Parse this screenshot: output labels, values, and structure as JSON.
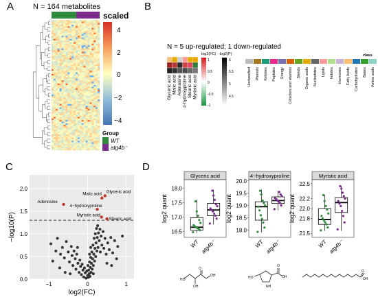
{
  "panels": {
    "A": {
      "letter": "A",
      "title": "N = 164 metabolites",
      "scale_title": "scaled",
      "scale_ticks": [
        "4",
        "2",
        "0",
        "−2",
        "−4"
      ],
      "group_title": "Group",
      "groups": [
        "WT",
        "atg4b⁻"
      ],
      "colors": {
        "wt": "#2e8b3e",
        "atg4b": "#7b2d8e",
        "high": "#d73027",
        "mid": "#ffffbf",
        "low": "#4575b4"
      }
    },
    "B": {
      "letter": "B",
      "title": "N = 5 up-regulated; 1 down-regulated",
      "metabolites": [
        "Glyceric acid",
        "Malic acid",
        "Adenosine",
        "4-hydroxyproline",
        "Stearic acid",
        "Myristic acid"
      ],
      "log2fc_title": "log2(FC)",
      "log2fc_ticks": [
        "1",
        "0.5",
        "0",
        "-0.5",
        "-1"
      ],
      "p_title": "-log2(P)",
      "p_ticks": [
        "6",
        "5.5",
        "5",
        "4.5"
      ],
      "class_title": "class",
      "classes": [
        "Unclassified",
        "Phenols",
        "Ketones",
        "Peptides",
        "Energy",
        "Cofactors and vitamins",
        "Sterols",
        "Organic acids",
        "Nucleotides",
        "Lipids",
        "Indoles",
        "Hormones",
        "Fatty Acids",
        "Carbohydrates",
        "Bases",
        "Amino acids"
      ],
      "class_colors": [
        "#bdbdbd",
        "#a6761d",
        "#1b9e77",
        "#e7298a",
        "#7570b3",
        "#d95f02",
        "#66a61e",
        "#e6ab02",
        "#666666",
        "#fb9a99",
        "#b2df8a",
        "#cab2d6",
        "#fdbf6f",
        "#1f78b4",
        "#33a02c",
        "#8dd3c7"
      ]
    },
    "C": {
      "letter": "C",
      "labels": [
        "Glyceric acid",
        "Adenosine",
        "Malic acid",
        "4−hydroxyproline",
        "Myristic acid",
        "Stearic acid"
      ]
    },
    "D": {
      "letter": "D",
      "ylabel": "log2 quant",
      "groups": [
        "WT",
        "atg4b⁻"
      ]
    }
  },
  "chart_data": [
    {
      "type": "heatmap",
      "title": "N = 164 metabolites",
      "legend_title": "scaled",
      "ylim": [
        -4,
        4
      ],
      "rows": 164,
      "column_groups": [
        "WT",
        "atg4b⁻"
      ]
    },
    {
      "type": "scatter",
      "xlabel": "log2(FC)",
      "ylabel": "−log10(P)",
      "xlim": [
        -1.5,
        1.2
      ],
      "ylim": [
        0,
        2.3
      ],
      "xticks": [
        "−1",
        "0",
        "1"
      ],
      "yticks": [
        "0.0",
        "0.5",
        "1.0",
        "1.5",
        "2.0"
      ],
      "threshold": 1.3,
      "highlighted": [
        {
          "name": "Glyceric acid",
          "x": 0.45,
          "y": 1.84
        },
        {
          "name": "Adenosine",
          "x": -0.62,
          "y": 1.65
        },
        {
          "name": "Malic acid",
          "x": 0.37,
          "y": 1.79
        },
        {
          "name": "4−hydroxyproline",
          "x": 0.25,
          "y": 1.54
        },
        {
          "name": "Myristic acid",
          "x": 0.36,
          "y": 1.37
        },
        {
          "name": "Stearic acid",
          "x": 0.5,
          "y": 1.33
        }
      ],
      "points": [
        [
          -0.95,
          0.78
        ],
        [
          -0.82,
          0.62
        ],
        [
          -0.78,
          0.9
        ],
        [
          -0.7,
          0.55
        ],
        [
          -0.65,
          0.7
        ],
        [
          -0.6,
          0.47
        ],
        [
          -0.55,
          0.83
        ],
        [
          -0.5,
          0.6
        ],
        [
          -0.47,
          0.38
        ],
        [
          -0.42,
          0.72
        ],
        [
          -0.4,
          0.52
        ],
        [
          -0.38,
          0.3
        ],
        [
          -0.35,
          0.62
        ],
        [
          -0.32,
          0.45
        ],
        [
          -0.3,
          0.22
        ],
        [
          -0.28,
          0.55
        ],
        [
          -0.25,
          0.35
        ],
        [
          -0.22,
          0.15
        ],
        [
          -0.2,
          0.42
        ],
        [
          -0.18,
          0.28
        ],
        [
          -0.16,
          0.1
        ],
        [
          -0.14,
          0.33
        ],
        [
          -0.12,
          0.2
        ],
        [
          -0.1,
          0.05
        ],
        [
          -0.08,
          0.25
        ],
        [
          -0.06,
          0.14
        ],
        [
          -0.04,
          0.02
        ],
        [
          -0.02,
          0.18
        ],
        [
          0.0,
          0.08
        ],
        [
          0.01,
          0.3
        ],
        [
          0.02,
          0.04
        ],
        [
          0.03,
          0.2
        ],
        [
          0.04,
          0.12
        ],
        [
          0.05,
          0.38
        ],
        [
          0.06,
          0.06
        ],
        [
          0.07,
          0.26
        ],
        [
          0.08,
          0.48
        ],
        [
          0.09,
          0.15
        ],
        [
          0.1,
          0.35
        ],
        [
          0.11,
          0.6
        ],
        [
          0.12,
          0.22
        ],
        [
          0.13,
          0.45
        ],
        [
          0.14,
          0.75
        ],
        [
          0.15,
          0.3
        ],
        [
          0.16,
          0.55
        ],
        [
          0.17,
          0.9
        ],
        [
          0.18,
          0.4
        ],
        [
          0.19,
          0.68
        ],
        [
          0.2,
          1.0
        ],
        [
          0.21,
          0.5
        ],
        [
          0.22,
          0.8
        ],
        [
          0.23,
          1.12
        ],
        [
          0.24,
          0.62
        ],
        [
          0.25,
          0.92
        ],
        [
          0.26,
          1.18
        ],
        [
          0.27,
          0.7
        ],
        [
          0.28,
          1.02
        ],
        [
          0.3,
          0.85
        ],
        [
          0.32,
          1.1
        ],
        [
          0.33,
          0.6
        ],
        [
          0.35,
          0.95
        ],
        [
          0.37,
          0.75
        ],
        [
          0.4,
          1.05
        ],
        [
          0.42,
          0.68
        ],
        [
          0.45,
          0.9
        ],
        [
          0.48,
          0.55
        ],
        [
          0.52,
          0.8
        ],
        [
          0.56,
          0.65
        ],
        [
          0.6,
          0.92
        ],
        [
          0.65,
          0.58
        ],
        [
          0.7,
          0.85
        ],
        [
          0.78,
          0.72
        ],
        [
          0.9,
          0.95
        ],
        [
          -0.9,
          0.4
        ],
        [
          -0.72,
          0.25
        ],
        [
          -0.58,
          0.15
        ],
        [
          -0.45,
          0.12
        ],
        [
          0.05,
          0.55
        ],
        [
          0.15,
          0.12
        ],
        [
          0.5,
          0.35
        ],
        [
          0.62,
          0.3
        ],
        [
          0.75,
          0.45
        ],
        [
          -0.26,
          0.7
        ],
        [
          0.08,
          0.7
        ]
      ]
    },
    {
      "type": "box",
      "title": "Glyceric acid",
      "ylabel": "log2 quant",
      "ylim": [
        16.3,
        18.3
      ],
      "yticks": [
        "16.5",
        "17.0",
        "17.5",
        "18.0"
      ],
      "series": [
        {
          "name": "WT",
          "q1": 16.55,
          "median": 16.65,
          "q3": 16.98,
          "min": 16.45,
          "max": 17.6,
          "points": [
            16.48,
            16.55,
            16.6,
            16.62,
            16.65,
            16.68,
            16.72,
            16.8,
            16.9,
            17.05,
            17.2,
            17.55
          ]
        },
        {
          "name": "atg4b⁻",
          "q1": 17.05,
          "median": 17.25,
          "q3": 17.48,
          "min": 16.75,
          "max": 17.95,
          "points": [
            16.78,
            16.95,
            17.05,
            17.12,
            17.2,
            17.25,
            17.3,
            17.38,
            17.45,
            17.6,
            17.75,
            17.92
          ]
        }
      ]
    },
    {
      "type": "box",
      "title": "4−hydroxyproline",
      "ylabel": "log2 quant",
      "ylim": [
        17.7,
        20.05
      ],
      "yticks": [
        "18.0",
        "18.5",
        "19.0",
        "19.5",
        "20.0"
      ],
      "series": [
        {
          "name": "WT",
          "q1": 18.4,
          "median": 18.95,
          "q3": 19.15,
          "min": 17.9,
          "max": 19.65,
          "points": [
            17.92,
            18.1,
            18.3,
            18.45,
            18.6,
            18.8,
            18.95,
            19.0,
            19.1,
            19.2,
            19.45,
            19.6
          ]
        },
        {
          "name": "atg4b⁻",
          "q1": 19.08,
          "median": 19.2,
          "q3": 19.35,
          "min": 18.8,
          "max": 19.6,
          "points": [
            18.85,
            19.0,
            19.1,
            19.15,
            19.2,
            19.25,
            19.3,
            19.38,
            19.45,
            19.55
          ]
        }
      ]
    },
    {
      "type": "box",
      "title": "Myristic acid",
      "ylabel": "log2 quant",
      "ylim": [
        21.42,
        22.58
      ],
      "yticks": [
        "21.5",
        "21.8",
        "22.0",
        "22.2",
        "22.5"
      ],
      "series": [
        {
          "name": "WT",
          "q1": 21.68,
          "median": 21.78,
          "q3": 22.0,
          "min": 21.55,
          "max": 22.28,
          "points": [
            21.56,
            21.62,
            21.68,
            21.72,
            21.76,
            21.8,
            21.85,
            21.9,
            21.98,
            22.05,
            22.15,
            22.27
          ]
        },
        {
          "name": "atg4b⁻",
          "q1": 21.92,
          "median": 22.12,
          "q3": 22.22,
          "min": 21.55,
          "max": 22.45,
          "points": [
            21.58,
            21.72,
            21.85,
            21.95,
            22.05,
            22.1,
            22.15,
            22.2,
            22.25,
            22.32,
            22.4,
            22.45
          ]
        }
      ]
    }
  ]
}
